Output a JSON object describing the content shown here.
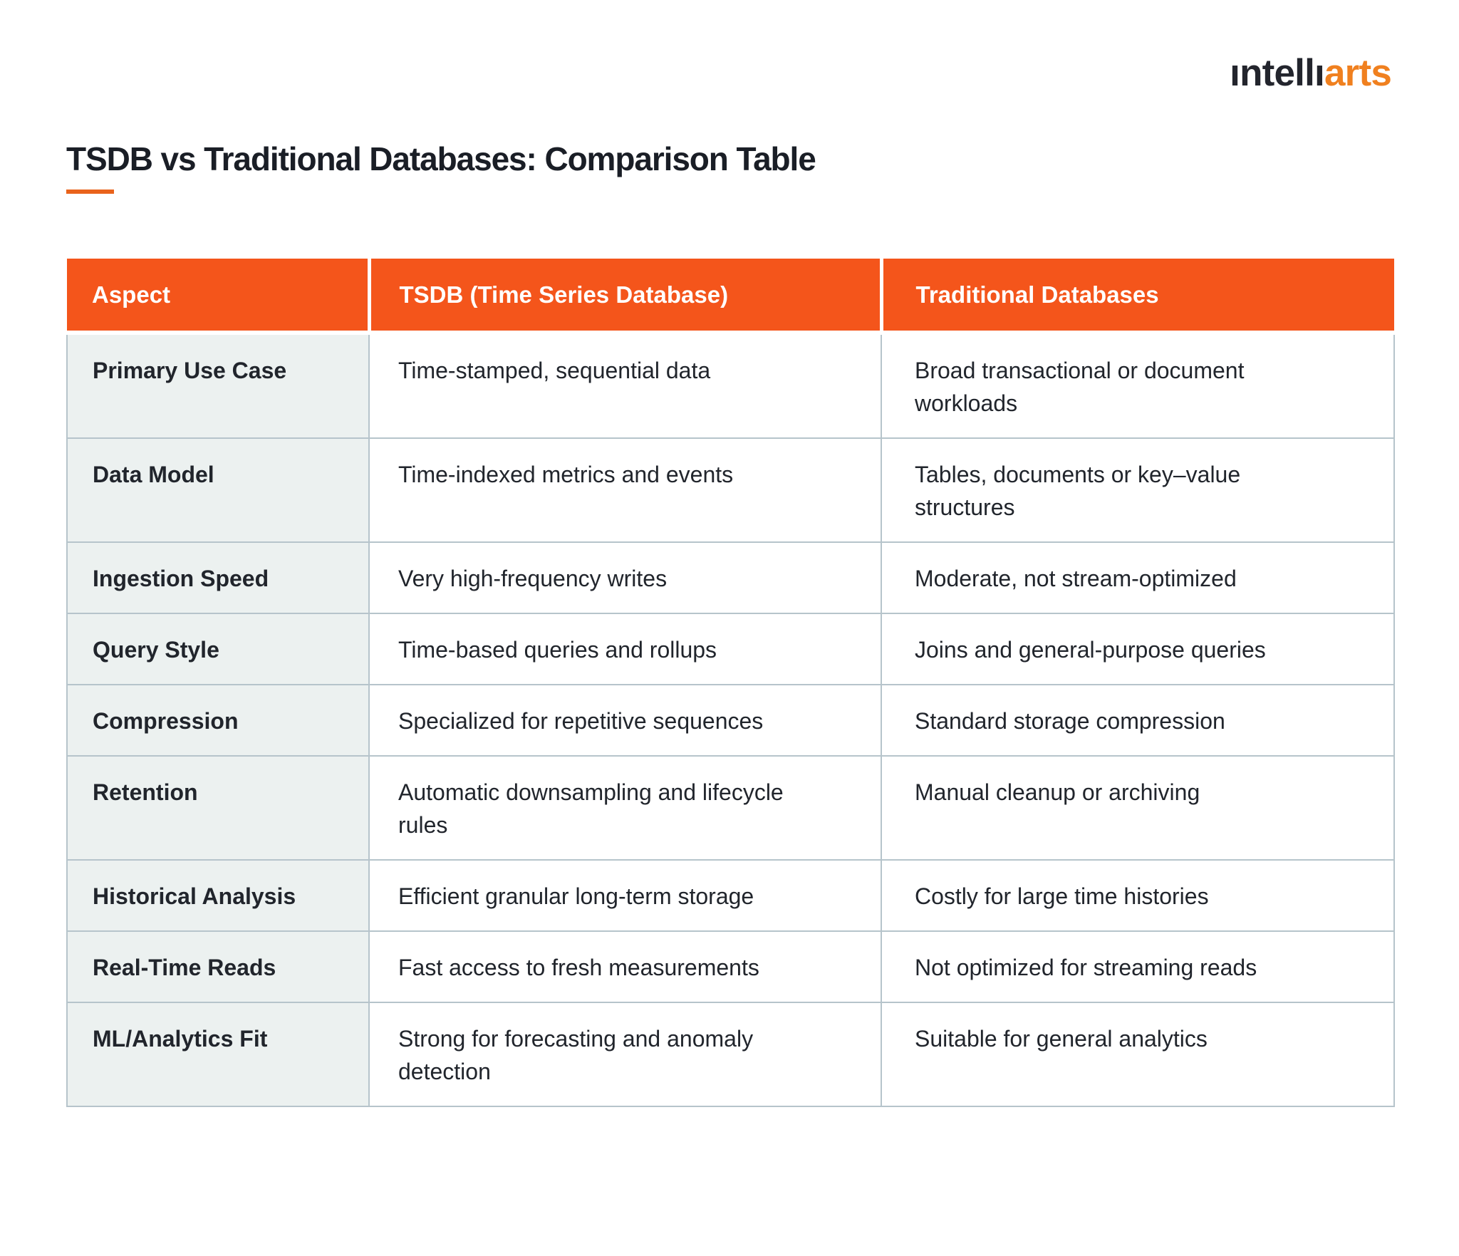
{
  "logo": {
    "part1": "ıntellı",
    "part2": "arts"
  },
  "page": {
    "title": "TSDB vs Traditional Databases: Comparison Table"
  },
  "table": {
    "headers": [
      "Aspect",
      "TSDB (Time Series Database)",
      "Traditional Databases"
    ],
    "rows": [
      {
        "aspect": "Primary Use Case",
        "tsdb": "Time-stamped, sequential data",
        "traditional": "Broad transactional or document workloads"
      },
      {
        "aspect": "Data Model",
        "tsdb": "Time-indexed metrics and events",
        "traditional": "Tables, documents or key–value structures"
      },
      {
        "aspect": "Ingestion Speed",
        "tsdb": "Very high-frequency writes",
        "traditional": "Moderate, not stream-optimized"
      },
      {
        "aspect": "Query Style",
        "tsdb": "Time-based queries and rollups",
        "traditional": "Joins and general-purpose queries"
      },
      {
        "aspect": "Compression",
        "tsdb": "Specialized for repetitive sequences",
        "traditional": "Standard storage compression"
      },
      {
        "aspect": "Retention",
        "tsdb": "Automatic downsampling and lifecycle rules",
        "traditional": "Manual cleanup or archiving"
      },
      {
        "aspect": "Historical Analysis",
        "tsdb": "Efficient granular long-term storage",
        "traditional": "Costly for large time histories"
      },
      {
        "aspect": "Real-Time Reads",
        "tsdb": "Fast access to fresh measurements",
        "traditional": "Not optimized for streaming reads"
      },
      {
        "aspect": "ML/Analytics Fit",
        "tsdb": "Strong for forecasting and anomaly detection",
        "traditional": "Suitable for general analytics"
      }
    ]
  },
  "colors": {
    "header_bg": "#F4551B",
    "accent_underline": "#E9631C",
    "logo_orange": "#F0801F",
    "logo_dark": "#23252D",
    "aspect_col_bg": "#ECF1F0",
    "border": "#B6C4CB",
    "text": "#21252C",
    "title_text": "#1A1E26",
    "header_text": "#FFFFFF"
  }
}
